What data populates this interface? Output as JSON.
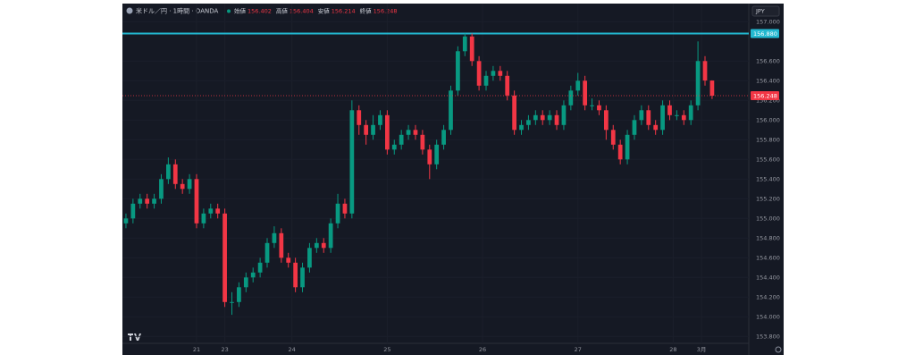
{
  "chart_data": {
    "type": "candlestick",
    "title": "米ドル／円 · 1時間 · OANDA",
    "ohlc_labels": [
      "始値",
      "高値",
      "安値",
      "終値"
    ],
    "currency": "JPY",
    "up_color": "#089981",
    "down_color": "#f23645",
    "open": [
      154.95,
      155.0,
      155.15,
      155.2,
      155.15,
      155.2,
      155.4,
      155.55,
      155.35,
      155.3,
      155.4,
      154.95,
      155.05,
      155.1,
      155.05,
      154.15,
      154.15,
      154.3,
      154.4,
      154.45,
      154.55,
      154.75,
      154.85,
      154.6,
      154.55,
      154.3,
      154.5,
      154.7,
      154.75,
      154.7,
      154.95,
      155.15,
      155.05,
      156.1,
      155.95,
      155.85,
      155.95,
      156.05,
      155.7,
      155.75,
      155.85,
      155.9,
      155.85,
      155.7,
      155.55,
      155.75,
      155.9,
      156.3,
      156.7,
      156.85,
      156.6,
      156.35,
      156.45,
      156.5,
      156.45,
      156.25,
      155.9,
      155.95,
      156.0,
      156.05,
      156.0,
      156.05,
      155.95,
      156.15,
      156.3,
      156.4,
      156.15,
      156.15,
      156.1,
      155.9,
      155.75,
      155.6,
      155.85,
      156.0,
      156.1,
      155.95,
      155.9,
      156.15,
      156.05,
      156.05,
      156.0,
      156.15,
      156.6,
      156.402
    ],
    "high": [
      155.05,
      155.2,
      155.25,
      155.25,
      155.25,
      155.45,
      155.62,
      155.6,
      155.4,
      155.45,
      155.45,
      155.1,
      155.15,
      155.15,
      155.1,
      154.25,
      154.35,
      154.45,
      154.5,
      154.6,
      154.8,
      154.92,
      154.9,
      154.65,
      154.6,
      154.55,
      154.75,
      154.8,
      154.8,
      155.0,
      155.25,
      155.2,
      156.2,
      156.15,
      156.0,
      156.05,
      156.1,
      156.1,
      155.8,
      155.9,
      155.95,
      155.95,
      155.9,
      155.75,
      155.8,
      155.95,
      156.35,
      156.75,
      156.88,
      156.88,
      156.65,
      156.5,
      156.55,
      156.55,
      156.5,
      156.3,
      156.0,
      156.05,
      156.1,
      156.1,
      156.1,
      156.1,
      156.2,
      156.35,
      156.48,
      156.45,
      156.22,
      156.2,
      156.15,
      155.95,
      155.8,
      155.9,
      156.05,
      156.15,
      156.15,
      156.0,
      156.2,
      156.2,
      156.1,
      156.1,
      156.2,
      156.8,
      156.65,
      156.404
    ],
    "low": [
      154.9,
      154.95,
      155.1,
      155.1,
      155.1,
      155.15,
      155.35,
      155.3,
      155.25,
      155.25,
      154.9,
      154.9,
      155.0,
      155.0,
      154.1,
      154.02,
      154.1,
      154.25,
      154.35,
      154.4,
      154.5,
      154.7,
      154.55,
      154.5,
      154.25,
      154.25,
      154.45,
      154.65,
      154.65,
      154.65,
      154.9,
      155.0,
      155.0,
      155.85,
      155.75,
      155.8,
      155.9,
      155.65,
      155.65,
      155.7,
      155.8,
      155.8,
      155.65,
      155.4,
      155.5,
      155.7,
      155.85,
      156.25,
      156.65,
      156.55,
      156.3,
      156.3,
      156.4,
      156.4,
      156.2,
      155.85,
      155.85,
      155.9,
      155.95,
      155.95,
      155.95,
      155.9,
      155.9,
      156.1,
      156.25,
      156.1,
      156.1,
      156.05,
      155.8,
      155.7,
      155.55,
      155.55,
      155.8,
      155.95,
      155.9,
      155.85,
      155.85,
      156.0,
      156.0,
      155.95,
      155.95,
      156.1,
      156.35,
      156.214
    ],
    "close": [
      155.0,
      155.15,
      155.2,
      155.15,
      155.2,
      155.4,
      155.55,
      155.35,
      155.3,
      155.4,
      154.95,
      155.05,
      155.1,
      155.05,
      154.15,
      154.15,
      154.3,
      154.4,
      154.45,
      154.55,
      154.75,
      154.85,
      154.6,
      154.55,
      154.3,
      154.5,
      154.7,
      154.75,
      154.7,
      154.95,
      155.15,
      155.05,
      156.1,
      155.95,
      155.85,
      155.95,
      156.05,
      155.7,
      155.75,
      155.85,
      155.9,
      155.85,
      155.7,
      155.55,
      155.75,
      155.9,
      156.3,
      156.7,
      156.85,
      156.6,
      156.35,
      156.45,
      156.5,
      156.45,
      156.25,
      155.9,
      155.95,
      156.0,
      156.05,
      156.0,
      156.05,
      155.95,
      156.15,
      156.3,
      156.4,
      156.15,
      156.15,
      156.1,
      155.9,
      155.75,
      155.6,
      155.85,
      156.0,
      156.1,
      155.95,
      155.9,
      156.15,
      156.05,
      156.05,
      156.0,
      156.15,
      156.6,
      156.402,
      156.248
    ],
    "ohlc_value_labels": [
      "156.402",
      "156.404",
      "156.214",
      "156.248"
    ],
    "xlim": [
      -0.5,
      88.2
    ],
    "xticks": [
      {
        "value": 10,
        "label": "21"
      },
      {
        "value": 14,
        "label": "23"
      },
      {
        "value": 23.5,
        "label": "24"
      },
      {
        "value": 37,
        "label": "25"
      },
      {
        "value": 50.5,
        "label": "26"
      },
      {
        "value": 64,
        "label": "27"
      },
      {
        "value": 77.5,
        "label": "28"
      },
      {
        "value": 81.5,
        "label": "3月"
      }
    ],
    "ylim": [
      153.73,
      157.13
    ],
    "yticks": [
      {
        "value": 153.8,
        "label": "153.800"
      },
      {
        "value": 154,
        "label": "154.000"
      },
      {
        "value": 154.2,
        "label": "154.200"
      },
      {
        "value": 154.4,
        "label": "154.400"
      },
      {
        "value": 154.6,
        "label": "154.600"
      },
      {
        "value": 154.8,
        "label": "154.800"
      },
      {
        "value": 155,
        "label": "155.000"
      },
      {
        "value": 155.2,
        "label": "155.200"
      },
      {
        "value": 155.4,
        "label": "155.400"
      },
      {
        "value": 155.6,
        "label": "155.600"
      },
      {
        "value": 155.8,
        "label": "155.800"
      },
      {
        "value": 156,
        "label": "156.000"
      },
      {
        "value": 156.2,
        "label": "156.200"
      },
      {
        "value": 156.4,
        "label": "156.400"
      },
      {
        "value": 156.6,
        "label": "156.600"
      },
      {
        "value": 157,
        "label": "157.000"
      }
    ],
    "grid": true,
    "hline": {
      "value": 156.88,
      "label": "156.880",
      "color": "#22b8d0"
    }
  }
}
